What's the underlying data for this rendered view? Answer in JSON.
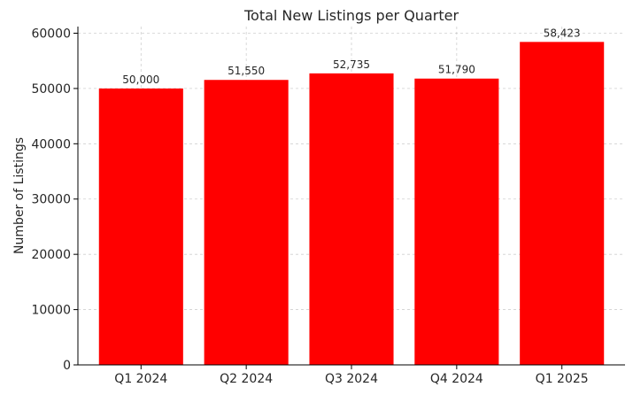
{
  "chart_data": {
    "type": "bar",
    "title": "Total New Listings per Quarter",
    "xlabel": "",
    "ylabel": "Number of Listings",
    "categories": [
      "Q1 2024",
      "Q2 2024",
      "Q3 2024",
      "Q4 2024",
      "Q1 2025"
    ],
    "values": [
      50000,
      51550,
      52735,
      51790,
      58423
    ],
    "data_labels": [
      "50,000",
      "51,550",
      "52,735",
      "51,790",
      "58,423"
    ],
    "ylim": [
      0,
      61200
    ],
    "yticks": [
      0,
      10000,
      20000,
      30000,
      40000,
      50000,
      60000
    ],
    "ytick_labels": [
      "0",
      "10000",
      "20000",
      "30000",
      "40000",
      "50000",
      "60000"
    ],
    "bar_color": "#ff0000",
    "grid": true
  }
}
